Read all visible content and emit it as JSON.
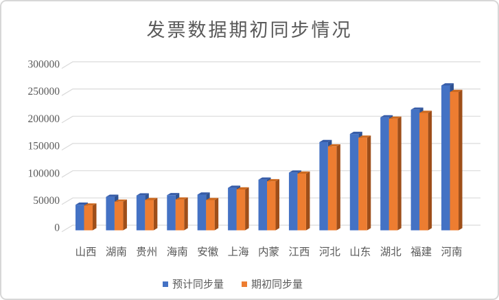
{
  "title": "发票数据期初同步情况",
  "chart_data": {
    "type": "bar",
    "style": "3d-clustered-column",
    "title": "发票数据期初同步情况",
    "categories": [
      "山西",
      "湖南",
      "贵州",
      "海南",
      "安徽",
      "上海",
      "内蒙",
      "江西",
      "河北",
      "山东",
      "湖北",
      "福建",
      "河南"
    ],
    "series": [
      {
        "name": "预计同步量",
        "color": "#4472C4",
        "color_top": "#365CA8",
        "color_side": "#2F5292",
        "values": [
          47000,
          61500,
          64000,
          64500,
          65500,
          78000,
          93000,
          106000,
          162000,
          177000,
          207500,
          221500,
          266000
        ]
      },
      {
        "name": "期初同步量",
        "color": "#ED7D31",
        "color_top": "#CD6A20",
        "color_side": "#9E4E19",
        "values": [
          45500,
          52500,
          55500,
          56500,
          55500,
          75000,
          90000,
          104000,
          154000,
          170000,
          205000,
          215500,
          254000
        ]
      }
    ],
    "yticks": [
      0,
      50000,
      100000,
      150000,
      200000,
      250000,
      300000
    ],
    "ylim": [
      0,
      300000
    ],
    "xlabel": "",
    "ylabel": "",
    "grid": true,
    "gridline_color": "#D9D9D9",
    "text_color": "#595959",
    "legend_position": "bottom"
  }
}
